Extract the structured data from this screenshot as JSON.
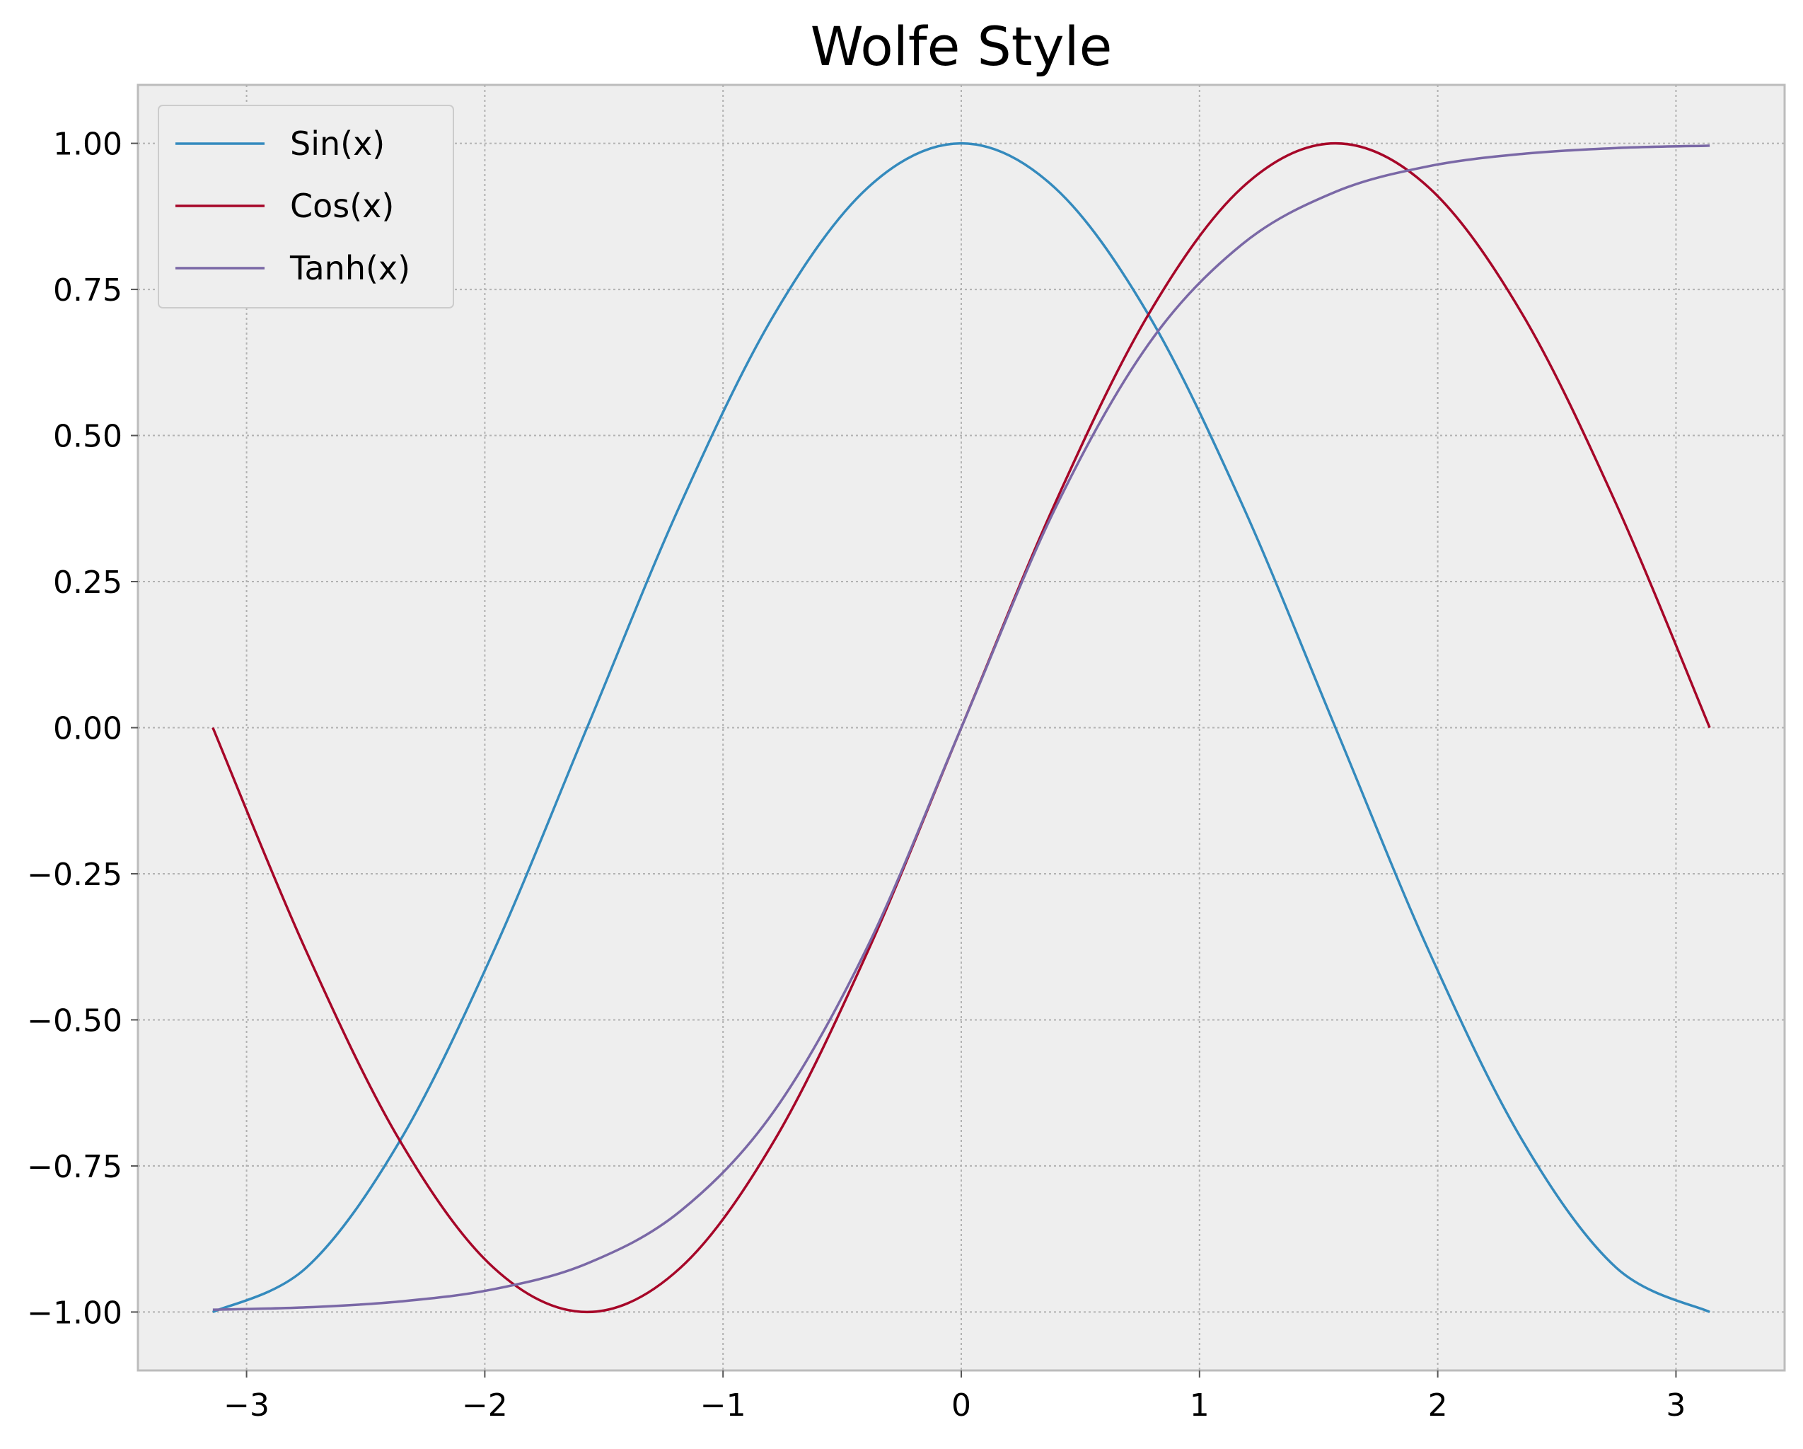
{
  "chart_data": {
    "type": "line",
    "title": "Wolfe Style",
    "xlabel": "",
    "ylabel": "",
    "xlim": [
      -3.456,
      3.456
    ],
    "ylim": [
      -1.1,
      1.1
    ],
    "xticks": [
      -3,
      -2,
      -1,
      0,
      1,
      2,
      3
    ],
    "xtick_labels": [
      "−3",
      "−2",
      "−1",
      "0",
      "1",
      "2",
      "3"
    ],
    "yticks": [
      1.0,
      0.75,
      0.5,
      0.25,
      0.0,
      -0.25,
      -0.5,
      -0.75,
      -1.0
    ],
    "ytick_labels": [
      "1.00",
      "0.75",
      "0.50",
      "0.25",
      "0.00",
      "−0.25",
      "−0.50",
      "−0.75",
      "−1.00"
    ],
    "grid": true,
    "legend_position": "top-left",
    "x_range": [
      -3.14159,
      3.14159
    ],
    "series": [
      {
        "name": "Sin(x)",
        "color": "#348abd",
        "x": [
          -3.1416,
          -2.7489,
          -2.3562,
          -1.9635,
          -1.5708,
          -1.1781,
          -0.7854,
          -0.3927,
          0.0,
          0.3927,
          0.7854,
          1.1781,
          1.5708,
          1.9635,
          2.3562,
          2.7489,
          3.1416
        ],
        "y": [
          -1.0,
          -0.924,
          -0.707,
          -0.383,
          0.0,
          0.383,
          0.707,
          0.924,
          1.0,
          0.924,
          0.707,
          0.383,
          0.0,
          -0.383,
          -0.707,
          -0.924,
          -1.0
        ]
      },
      {
        "name": "Cos(x)",
        "color": "#a60628",
        "x": [
          -3.1416,
          -2.7489,
          -2.3562,
          -1.9635,
          -1.5708,
          -1.1781,
          -0.7854,
          -0.3927,
          0.0,
          0.3927,
          0.7854,
          1.1781,
          1.5708,
          1.9635,
          2.3562,
          2.7489,
          3.1416
        ],
        "y": [
          0.0,
          -0.383,
          -0.707,
          -0.924,
          -1.0,
          -0.924,
          -0.707,
          -0.383,
          0.0,
          0.383,
          0.707,
          0.924,
          1.0,
          0.924,
          0.707,
          0.383,
          0.0
        ]
      },
      {
        "name": "Tanh(x)",
        "color": "#7a68a6",
        "x": [
          -3.1416,
          -2.7489,
          -2.3562,
          -1.9635,
          -1.5708,
          -1.1781,
          -0.7854,
          -0.3927,
          0.0,
          0.3927,
          0.7854,
          1.1781,
          1.5708,
          1.9635,
          2.3562,
          2.7489,
          3.1416
        ],
        "y": [
          -0.996,
          -0.992,
          -0.982,
          -0.961,
          -0.917,
          -0.827,
          -0.656,
          -0.374,
          0.0,
          0.374,
          0.656,
          0.827,
          0.917,
          0.961,
          0.982,
          0.992,
          0.996
        ]
      }
    ]
  }
}
